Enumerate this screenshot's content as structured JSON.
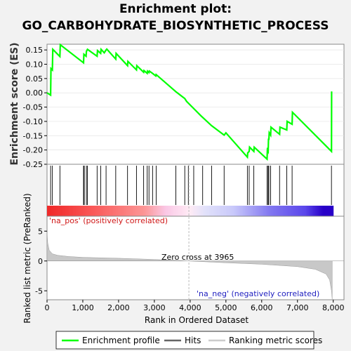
{
  "title_line1": "Enrichment plot:",
  "title_line2": "GO_CARBOHYDRATE_BIOSYNTHETIC_PROCESS",
  "colors": {
    "profile": "#00ff00",
    "hits": "#000000",
    "metric_fill": "#c8c8c8",
    "zero_cross_line": "#bbbbbb"
  },
  "chart_data": [
    {
      "type": "line",
      "ylabel": "Enrichment score (ES)",
      "xlim": [
        0,
        8300
      ],
      "ylim": [
        -0.25,
        0.17
      ],
      "yticks": [
        0.15,
        0.1,
        0.05,
        0.0,
        -0.05,
        -0.1,
        -0.15,
        -0.2,
        -0.25
      ],
      "ytick_labels": [
        "0.15",
        "0.10",
        "0.05",
        "0.00",
        "-0.05",
        "-0.10",
        "-0.15",
        "-0.20",
        "-0.25"
      ],
      "series": [
        {
          "name": "Enrichment profile",
          "x": [
            0,
            100,
            110,
            150,
            160,
            360,
            370,
            1020,
            1030,
            1090,
            1100,
            1130,
            1400,
            1410,
            1500,
            1510,
            1600,
            1650,
            1670,
            1920,
            1930,
            2250,
            2260,
            2500,
            2510,
            2700,
            2710,
            2800,
            2810,
            2850,
            2860,
            2950,
            3040,
            3050,
            3600,
            3850,
            3900,
            4100,
            4300,
            4600,
            4950,
            5000,
            5600,
            5610,
            5650,
            5660,
            5780,
            5790,
            6150,
            6160,
            6180,
            6190,
            6200,
            6210,
            6250,
            6260,
            6500,
            6510,
            6700,
            6710,
            6850,
            6860,
            7950,
            7955
          ],
          "y": [
            0.0,
            -0.008,
            0.085,
            0.08,
            0.152,
            0.127,
            0.168,
            0.105,
            0.135,
            0.128,
            0.145,
            0.152,
            0.128,
            0.148,
            0.138,
            0.152,
            0.14,
            0.15,
            0.153,
            0.118,
            0.138,
            0.095,
            0.11,
            0.08,
            0.095,
            0.072,
            0.078,
            0.068,
            0.076,
            0.071,
            0.076,
            0.068,
            0.059,
            0.064,
            0.004,
            -0.02,
            -0.03,
            -0.055,
            -0.08,
            -0.115,
            -0.148,
            -0.14,
            -0.225,
            -0.21,
            -0.205,
            -0.19,
            -0.205,
            -0.19,
            -0.232,
            -0.2,
            -0.205,
            -0.16,
            -0.165,
            -0.14,
            -0.148,
            -0.12,
            -0.145,
            -0.12,
            -0.13,
            -0.1,
            -0.11,
            -0.068,
            -0.205,
            0.005
          ]
        }
      ]
    },
    {
      "type": "scatter",
      "series": [
        {
          "name": "Hits",
          "x": [
            100,
            150,
            360,
            1020,
            1040,
            1100,
            1130,
            1400,
            1500,
            1650,
            1920,
            2250,
            2500,
            2700,
            2800,
            2850,
            2950,
            3050,
            3600,
            3850,
            3950,
            4100,
            4350,
            4600,
            4950,
            5600,
            5650,
            5780,
            6150,
            6180,
            6200,
            6250,
            6500,
            6700,
            6850,
            7950
          ]
        }
      ]
    },
    {
      "type": "area",
      "xlabel": "Rank in Ordered Dataset",
      "ylabel": "Ranked list metric (PreRanked)",
      "xlim": [
        0,
        8300
      ],
      "ylim": [
        -6.5,
        7.5
      ],
      "yticks": [
        5,
        0,
        -5
      ],
      "ytick_labels": [
        "5",
        "0",
        "-5"
      ],
      "xticks": [
        0,
        1000,
        2000,
        3000,
        4000,
        5000,
        6000,
        7000,
        8000
      ],
      "xtick_labels": [
        "0",
        "1,000",
        "2,000",
        "3,000",
        "4,000",
        "5,000",
        "6,000",
        "7,000",
        "8,000"
      ],
      "series": [
        {
          "name": "Ranking metric scores",
          "x": [
            0,
            20,
            60,
            150,
            300,
            600,
            1000,
            2000,
            3000,
            3965,
            5000,
            6000,
            7000,
            7500,
            7800,
            7900,
            7950,
            7970
          ],
          "y": [
            4.8,
            3.0,
            1.8,
            1.2,
            0.95,
            0.75,
            0.6,
            0.45,
            0.25,
            0.0,
            -0.3,
            -0.55,
            -0.95,
            -1.4,
            -2.2,
            -3.2,
            -5.0,
            -6.4
          ]
        }
      ],
      "annotations": [
        "Zero cross at 3965",
        "'na_pos' (positively correlated)",
        "'na_neg' (negatively correlated)"
      ]
    }
  ],
  "legend": {
    "items": [
      "Enrichment profile",
      "Hits",
      "Ranking metric scores"
    ]
  }
}
